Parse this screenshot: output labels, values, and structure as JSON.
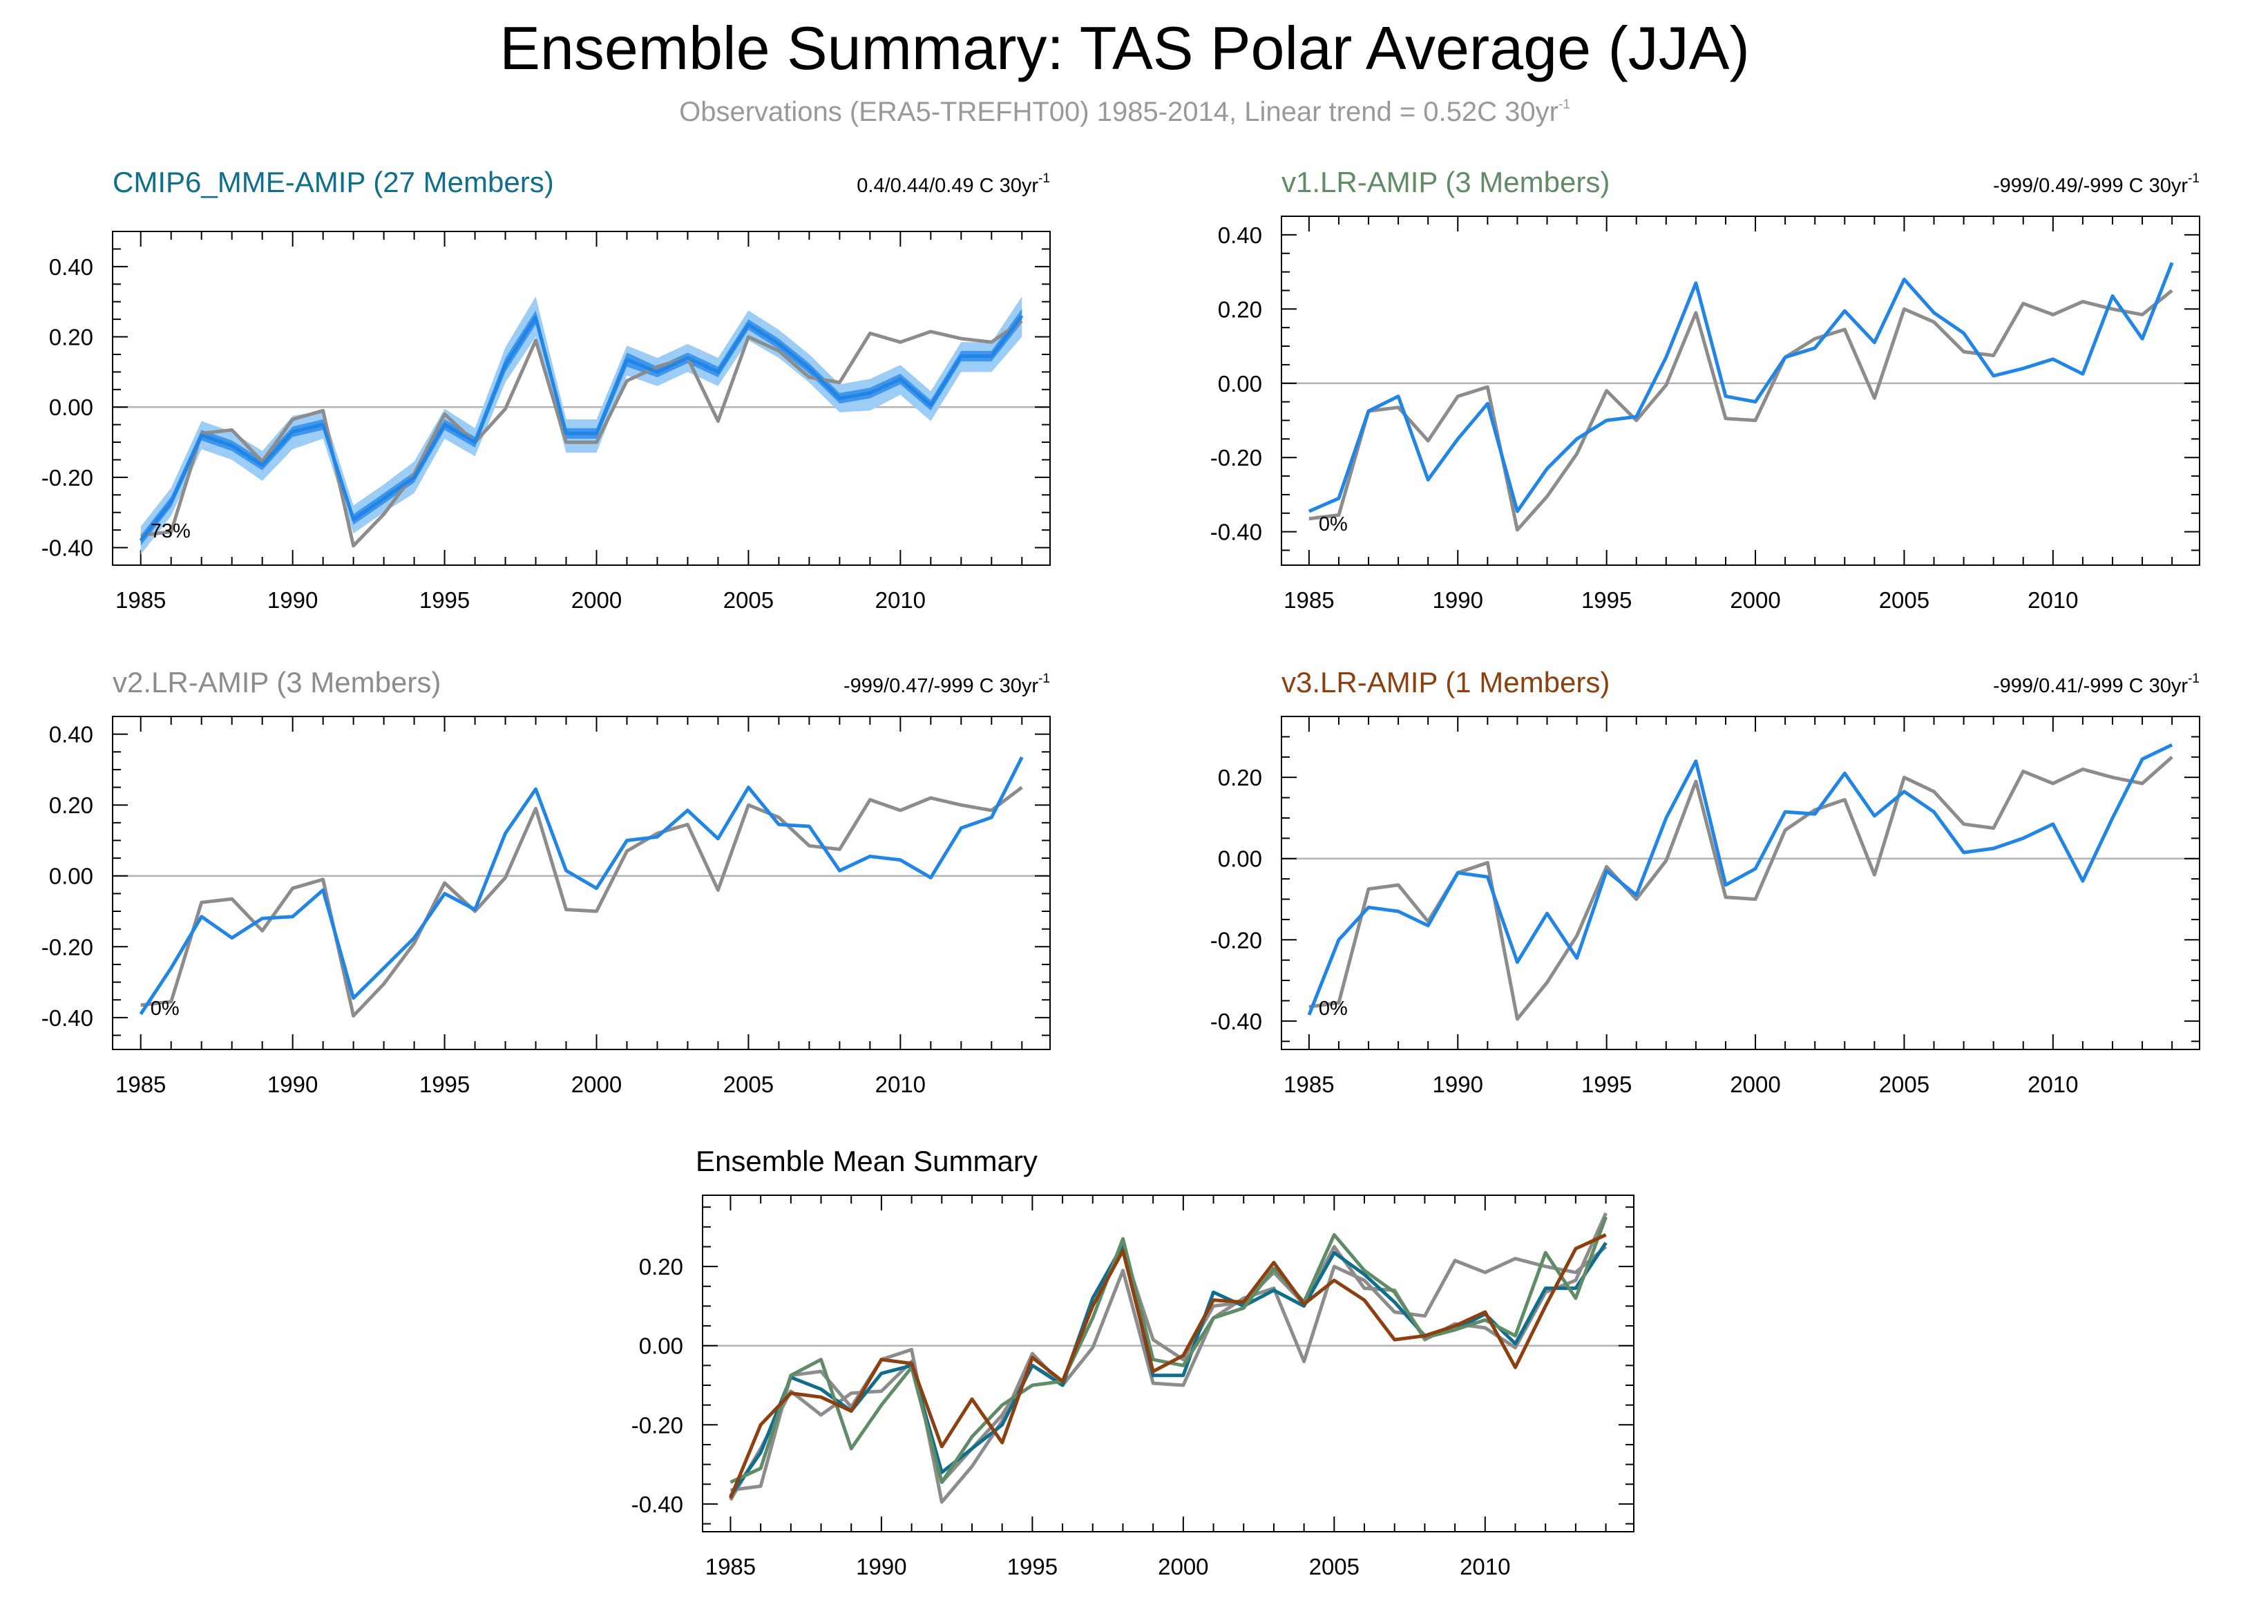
{
  "figure": {
    "title": "Ensemble Summary: TAS Polar Average (JJA)",
    "subtitle_main": "Observations (ERA5-TREFHT00) 1985-2014, Linear trend = 0.52C 30yr",
    "subtitle_sup": "-1"
  },
  "colors": {
    "observations": "#8c8c8c",
    "model_line": "#2185e6",
    "band_inner": "#3f96ec",
    "band_outer": "#9ccdf6",
    "cmip6": "#0e6e8c",
    "v1": "#5f8c66",
    "v2": "#8c8c8c",
    "v3": "#8c3f0f",
    "zero_line": "#b3b3b3"
  },
  "chart_data": [
    {
      "id": "cmip6",
      "type": "line",
      "title": "CMIP6_MME-AMIP (27 Members)",
      "trend_text": "0.4/0.44/0.49 C 30yr",
      "trend_sup": "-1",
      "percent_label": "73%",
      "xlim": [
        1985,
        2014
      ],
      "ylim": [
        -0.45,
        0.5
      ],
      "xticks": [
        "1985",
        "1990",
        "1995",
        "2000",
        "2005",
        "2010"
      ],
      "yticks": [
        "0.40",
        "0.20",
        "0.00",
        "-0.20",
        "-0.40"
      ],
      "x": [
        1985,
        1986,
        1987,
        1988,
        1989,
        1990,
        1991,
        1992,
        1993,
        1994,
        1995,
        1996,
        1997,
        1998,
        1999,
        2000,
        2001,
        2002,
        2003,
        2004,
        2005,
        2006,
        2007,
        2008,
        2009,
        2010,
        2011,
        2012,
        2013,
        2014
      ],
      "observations": [
        -0.365,
        -0.355,
        -0.075,
        -0.065,
        -0.155,
        -0.035,
        -0.01,
        -0.395,
        -0.305,
        -0.19,
        -0.02,
        -0.1,
        -0.005,
        0.19,
        -0.1,
        -0.1,
        0.075,
        0.115,
        0.14,
        -0.04,
        0.2,
        0.16,
        0.085,
        0.07,
        0.21,
        0.185,
        0.215,
        0.195,
        0.185,
        0.245
      ],
      "mean": [
        -0.38,
        -0.27,
        -0.08,
        -0.11,
        -0.165,
        -0.07,
        -0.05,
        -0.32,
        -0.26,
        -0.2,
        -0.05,
        -0.1,
        0.12,
        0.255,
        -0.075,
        -0.075,
        0.135,
        0.1,
        0.14,
        0.1,
        0.235,
        0.18,
        0.11,
        0.025,
        0.04,
        0.08,
        0.005,
        0.145,
        0.145,
        0.26
      ],
      "p25": [
        -0.395,
        -0.285,
        -0.095,
        -0.125,
        -0.18,
        -0.085,
        -0.065,
        -0.335,
        -0.275,
        -0.215,
        -0.065,
        -0.115,
        0.1,
        0.235,
        -0.09,
        -0.09,
        0.115,
        0.085,
        0.125,
        0.085,
        0.22,
        0.165,
        0.095,
        0.01,
        0.025,
        0.065,
        -0.01,
        0.13,
        0.13,
        0.24
      ],
      "p75": [
        -0.365,
        -0.255,
        -0.065,
        -0.095,
        -0.15,
        -0.055,
        -0.035,
        -0.305,
        -0.245,
        -0.185,
        -0.035,
        -0.085,
        0.14,
        0.275,
        -0.06,
        -0.06,
        0.155,
        0.115,
        0.155,
        0.115,
        0.25,
        0.195,
        0.125,
        0.04,
        0.055,
        0.095,
        0.02,
        0.16,
        0.16,
        0.28
      ],
      "min": [
        -0.42,
        -0.31,
        -0.12,
        -0.15,
        -0.21,
        -0.12,
        -0.09,
        -0.36,
        -0.3,
        -0.245,
        -0.09,
        -0.14,
        0.07,
        0.2,
        -0.13,
        -0.13,
        0.09,
        0.06,
        0.1,
        0.06,
        0.19,
        0.14,
        0.07,
        -0.015,
        -0.01,
        0.035,
        -0.04,
        0.1,
        0.1,
        0.2
      ],
      "max": [
        -0.34,
        -0.23,
        -0.04,
        -0.07,
        -0.125,
        -0.025,
        -0.01,
        -0.28,
        -0.22,
        -0.155,
        -0.005,
        -0.06,
        0.17,
        0.315,
        -0.035,
        -0.035,
        0.175,
        0.14,
        0.18,
        0.14,
        0.275,
        0.22,
        0.15,
        0.065,
        0.08,
        0.12,
        0.045,
        0.185,
        0.185,
        0.315
      ]
    },
    {
      "id": "v1",
      "type": "line",
      "title": "v1.LR-AMIP (3 Members)",
      "trend_text": "-999/0.49/-999 C 30yr",
      "trend_sup": "-1",
      "percent_label": "0%",
      "xlim": [
        1985,
        2014
      ],
      "ylim": [
        -0.49,
        0.45
      ],
      "xticks": [
        "1985",
        "1990",
        "1995",
        "2000",
        "2005",
        "2010"
      ],
      "yticks": [
        "0.40",
        "0.20",
        "0.00",
        "-0.20",
        "-0.40"
      ],
      "x": [
        1985,
        1986,
        1987,
        1988,
        1989,
        1990,
        1991,
        1992,
        1993,
        1994,
        1995,
        1996,
        1997,
        1998,
        1999,
        2000,
        2001,
        2002,
        2003,
        2004,
        2005,
        2006,
        2007,
        2008,
        2009,
        2010,
        2011,
        2012,
        2013,
        2014
      ],
      "observations": [
        -0.365,
        -0.355,
        -0.075,
        -0.065,
        -0.155,
        -0.035,
        -0.01,
        -0.395,
        -0.305,
        -0.19,
        -0.02,
        -0.1,
        -0.005,
        0.19,
        -0.095,
        -0.1,
        0.07,
        0.12,
        0.145,
        -0.04,
        0.2,
        0.165,
        0.085,
        0.075,
        0.215,
        0.185,
        0.22,
        0.2,
        0.185,
        0.25
      ],
      "model": [
        -0.345,
        -0.31,
        -0.075,
        -0.035,
        -0.26,
        -0.15,
        -0.055,
        -0.345,
        -0.23,
        -0.15,
        -0.1,
        -0.09,
        0.07,
        0.27,
        -0.035,
        -0.05,
        0.07,
        0.095,
        0.195,
        0.11,
        0.28,
        0.19,
        0.135,
        0.02,
        0.04,
        0.065,
        0.025,
        0.235,
        0.12,
        0.325
      ]
    },
    {
      "id": "v2",
      "type": "line",
      "title": "v2.LR-AMIP (3 Members)",
      "trend_text": "-999/0.47/-999 C 30yr",
      "trend_sup": "-1",
      "percent_label": "0%",
      "xlim": [
        1985,
        2014
      ],
      "ylim": [
        -0.49,
        0.45
      ],
      "xticks": [
        "1985",
        "1990",
        "1995",
        "2000",
        "2005",
        "2010"
      ],
      "yticks": [
        "0.40",
        "0.20",
        "0.00",
        "-0.20",
        "-0.40"
      ],
      "x": [
        1985,
        1986,
        1987,
        1988,
        1989,
        1990,
        1991,
        1992,
        1993,
        1994,
        1995,
        1996,
        1997,
        1998,
        1999,
        2000,
        2001,
        2002,
        2003,
        2004,
        2005,
        2006,
        2007,
        2008,
        2009,
        2010,
        2011,
        2012,
        2013,
        2014
      ],
      "observations": [
        -0.365,
        -0.355,
        -0.075,
        -0.065,
        -0.155,
        -0.035,
        -0.01,
        -0.395,
        -0.305,
        -0.19,
        -0.02,
        -0.1,
        -0.005,
        0.19,
        -0.095,
        -0.1,
        0.07,
        0.12,
        0.145,
        -0.04,
        0.2,
        0.165,
        0.085,
        0.075,
        0.215,
        0.185,
        0.22,
        0.2,
        0.185,
        0.25
      ],
      "model": [
        -0.39,
        -0.26,
        -0.115,
        -0.175,
        -0.12,
        -0.115,
        -0.04,
        -0.345,
        -0.26,
        -0.175,
        -0.05,
        -0.095,
        0.12,
        0.245,
        0.015,
        -0.035,
        0.1,
        0.11,
        0.185,
        0.105,
        0.25,
        0.145,
        0.14,
        0.015,
        0.055,
        0.045,
        -0.005,
        0.135,
        0.165,
        0.335
      ]
    },
    {
      "id": "v3",
      "type": "line",
      "title": "v3.LR-AMIP (1 Members)",
      "trend_text": "-999/0.41/-999 C 30yr",
      "trend_sup": "-1",
      "percent_label": "0%",
      "xlim": [
        1985,
        2014
      ],
      "ylim": [
        -0.47,
        0.35
      ],
      "xticks": [
        "1985",
        "1990",
        "1995",
        "2000",
        "2005",
        "2010"
      ],
      "yticks": [
        "0.20",
        "0.00",
        "-0.20",
        "-0.40"
      ],
      "x": [
        1985,
        1986,
        1987,
        1988,
        1989,
        1990,
        1991,
        1992,
        1993,
        1994,
        1995,
        1996,
        1997,
        1998,
        1999,
        2000,
        2001,
        2002,
        2003,
        2004,
        2005,
        2006,
        2007,
        2008,
        2009,
        2010,
        2011,
        2012,
        2013,
        2014
      ],
      "observations": [
        -0.365,
        -0.355,
        -0.075,
        -0.065,
        -0.155,
        -0.035,
        -0.01,
        -0.395,
        -0.305,
        -0.19,
        -0.02,
        -0.1,
        -0.005,
        0.19,
        -0.095,
        -0.1,
        0.07,
        0.12,
        0.145,
        -0.04,
        0.2,
        0.165,
        0.085,
        0.075,
        0.215,
        0.185,
        0.22,
        0.2,
        0.185,
        0.25
      ],
      "model": [
        -0.385,
        -0.2,
        -0.12,
        -0.13,
        -0.165,
        -0.035,
        -0.045,
        -0.255,
        -0.135,
        -0.245,
        -0.03,
        -0.09,
        0.1,
        0.24,
        -0.065,
        -0.025,
        0.115,
        0.11,
        0.21,
        0.105,
        0.165,
        0.115,
        0.015,
        0.025,
        0.05,
        0.085,
        -0.055,
        0.1,
        0.245,
        0.28
      ]
    },
    {
      "id": "summary",
      "type": "line",
      "title": "Ensemble Mean Summary",
      "xlim": [
        1985,
        2014
      ],
      "ylim": [
        -0.47,
        0.38
      ],
      "xticks": [
        "1985",
        "1990",
        "1995",
        "2000",
        "2005",
        "2010"
      ],
      "yticks": [
        "0.20",
        "0.00",
        "-0.20",
        "-0.40"
      ],
      "x": [
        1985,
        1986,
        1987,
        1988,
        1989,
        1990,
        1991,
        1992,
        1993,
        1994,
        1995,
        1996,
        1997,
        1998,
        1999,
        2000,
        2001,
        2002,
        2003,
        2004,
        2005,
        2006,
        2007,
        2008,
        2009,
        2010,
        2011,
        2012,
        2013,
        2014
      ],
      "series": [
        {
          "key": "observations",
          "color": "#8c8c8c",
          "values": [
            -0.365,
            -0.355,
            -0.075,
            -0.065,
            -0.155,
            -0.035,
            -0.01,
            -0.395,
            -0.305,
            -0.19,
            -0.02,
            -0.1,
            -0.005,
            0.19,
            -0.095,
            -0.1,
            0.07,
            0.12,
            0.145,
            -0.04,
            0.2,
            0.165,
            0.085,
            0.075,
            0.215,
            0.185,
            0.22,
            0.2,
            0.185,
            0.25
          ]
        },
        {
          "key": "v2",
          "color": "#8c8c8c",
          "values": [
            -0.39,
            -0.26,
            -0.115,
            -0.175,
            -0.12,
            -0.115,
            -0.04,
            -0.345,
            -0.26,
            -0.175,
            -0.05,
            -0.095,
            0.12,
            0.245,
            0.015,
            -0.035,
            0.1,
            0.11,
            0.185,
            0.105,
            0.25,
            0.145,
            0.14,
            0.015,
            0.055,
            0.045,
            -0.005,
            0.135,
            0.165,
            0.335
          ]
        },
        {
          "key": "cmip6",
          "color": "#0e6e8c",
          "values": [
            -0.38,
            -0.27,
            -0.08,
            -0.11,
            -0.165,
            -0.07,
            -0.05,
            -0.32,
            -0.26,
            -0.2,
            -0.05,
            -0.1,
            0.12,
            0.255,
            -0.075,
            -0.075,
            0.135,
            0.1,
            0.14,
            0.1,
            0.235,
            0.18,
            0.11,
            0.025,
            0.04,
            0.08,
            0.005,
            0.145,
            0.145,
            0.26
          ]
        },
        {
          "key": "v1",
          "color": "#5f8c66",
          "values": [
            -0.345,
            -0.31,
            -0.075,
            -0.035,
            -0.26,
            -0.15,
            -0.055,
            -0.345,
            -0.23,
            -0.15,
            -0.1,
            -0.09,
            0.07,
            0.27,
            -0.035,
            -0.05,
            0.07,
            0.095,
            0.195,
            0.11,
            0.28,
            0.19,
            0.135,
            0.02,
            0.04,
            0.065,
            0.025,
            0.235,
            0.12,
            0.325
          ]
        },
        {
          "key": "v3",
          "color": "#8c3f0f",
          "values": [
            -0.385,
            -0.2,
            -0.12,
            -0.13,
            -0.165,
            -0.035,
            -0.045,
            -0.255,
            -0.135,
            -0.245,
            -0.03,
            -0.09,
            0.1,
            0.24,
            -0.065,
            -0.025,
            0.115,
            0.11,
            0.21,
            0.105,
            0.165,
            0.115,
            0.015,
            0.025,
            0.05,
            0.085,
            -0.055,
            0.1,
            0.245,
            0.28
          ]
        }
      ]
    }
  ]
}
